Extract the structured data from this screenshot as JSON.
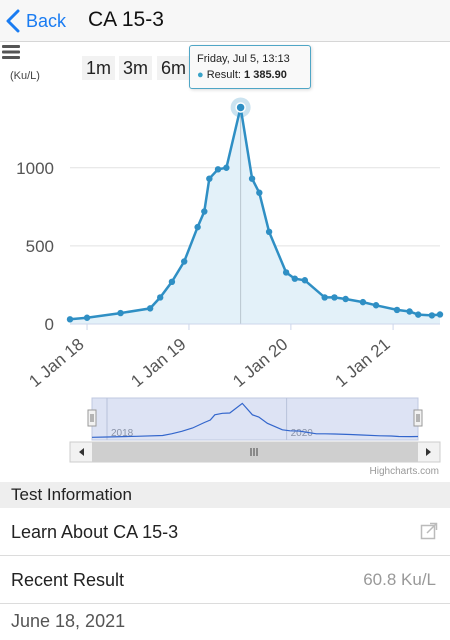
{
  "nav": {
    "back_label": "Back",
    "title": "CA 15-3"
  },
  "chart_controls": {
    "range_buttons": [
      "1m",
      "3m",
      "6m"
    ],
    "credits": "Highcharts.com"
  },
  "tooltip": {
    "date": "Friday, Jul 5, 13:13",
    "label": "Result:",
    "value": "1 385.90"
  },
  "chart_data": {
    "type": "area",
    "ylabel": "(Ku/L)",
    "yticks": [
      "0",
      "500",
      "1000"
    ],
    "xticks": [
      "1 Jan 18",
      "1 Jan 19",
      "1 Jan 20",
      "1 Jan 21"
    ],
    "navigator_ticks": [
      "2018",
      "2020"
    ],
    "ylim": [
      0,
      1600
    ],
    "series": [
      {
        "x": [
          "2017-11-01",
          "2018-01-01",
          "2018-05-01",
          "2018-08-15",
          "2018-09-20",
          "2018-11-01",
          "2018-12-15",
          "2019-02-01",
          "2019-02-25",
          "2019-03-15",
          "2019-04-15",
          "2019-05-15",
          "2019-07-05",
          "2019-08-15",
          "2019-09-10",
          "2019-10-15",
          "2019-12-15",
          "2020-01-15",
          "2020-02-20",
          "2020-05-01",
          "2020-06-05",
          "2020-07-15",
          "2020-09-15",
          "2020-11-01",
          "2021-01-15",
          "2021-03-01",
          "2021-04-01",
          "2021-05-20",
          "2021-06-18"
        ],
        "values": [
          30,
          40,
          70,
          100,
          170,
          270,
          400,
          620,
          720,
          930,
          990,
          1000,
          1386,
          930,
          840,
          590,
          330,
          290,
          280,
          170,
          170,
          160,
          140,
          120,
          90,
          80,
          60,
          55,
          61
        ]
      }
    ],
    "highlight": {
      "x": "2019-07-05",
      "y": 1385.9
    },
    "colors": {
      "line": "#2f8fc4",
      "fill": "#e3f1f9",
      "marker": "#2f8fc4",
      "tooltip_border": "#4fa6c6"
    }
  },
  "test_info": {
    "header": "Test Information",
    "learn_label": "Learn About CA 15-3",
    "recent_label": "Recent Result",
    "recent_value": "60.8 Ku/L",
    "recent_date": "June 18, 2021"
  }
}
